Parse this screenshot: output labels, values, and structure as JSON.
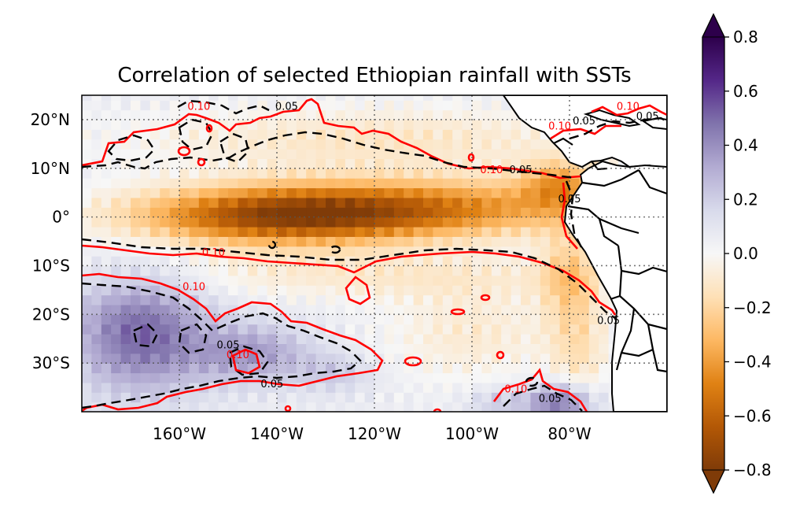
{
  "chart_data": {
    "type": "heatmap",
    "title": "Correlation of selected Ethiopian rainfall with SSTs",
    "colormap": "PuOr",
    "colorbar": {
      "range": [
        -0.8,
        0.8
      ],
      "extend": "both",
      "ticks": [
        "0.8",
        "0.6",
        "0.4",
        "0.2",
        "0.0",
        "−0.2",
        "−0.4",
        "−0.6",
        "−0.8"
      ],
      "tick_values": [
        0.8,
        0.6,
        0.4,
        0.2,
        0.0,
        -0.2,
        -0.4,
        -0.6,
        -0.8
      ]
    },
    "x_ticks": {
      "labels": [
        "160°W",
        "140°W",
        "120°W",
        "100°W",
        "80°W"
      ],
      "lon": [
        -160,
        -140,
        -120,
        -100,
        -80
      ]
    },
    "y_ticks": {
      "labels": [
        "20°N",
        "10°N",
        "0°",
        "10°S",
        "20°S",
        "30°S"
      ],
      "lat": [
        20,
        10,
        0,
        -10,
        -20,
        -30
      ]
    },
    "lon_range": [
      -180,
      -60
    ],
    "lat_range": [
      -40,
      25
    ],
    "gridlines": true,
    "contours": [
      {
        "level": "0.10",
        "meaning": "red solid significance contour",
        "color": "#ff0000"
      },
      {
        "level": "0.05",
        "meaning": "black dashed significance contour",
        "color": "#000000"
      }
    ],
    "contour_labels": [
      {
        "text": "0.10",
        "lon": -156,
        "lat": 22,
        "color": "#ff0000"
      },
      {
        "text": "0.05",
        "lon": -138,
        "lat": 22,
        "color": "#000000"
      },
      {
        "text": "0.10",
        "lon": -82,
        "lat": 18,
        "color": "#ff0000"
      },
      {
        "text": "0.05",
        "lon": -77,
        "lat": 19,
        "color": "#000000"
      },
      {
        "text": "0.10",
        "lon": -68,
        "lat": 22,
        "color": "#ff0000"
      },
      {
        "text": "0.05",
        "lon": -64,
        "lat": 20,
        "color": "#000000"
      },
      {
        "text": "0.10",
        "lon": -96,
        "lat": 9,
        "color": "#ff0000"
      },
      {
        "text": "0.05",
        "lon": -90,
        "lat": 9,
        "color": "#000000"
      },
      {
        "text": "0.05",
        "lon": -80,
        "lat": 3,
        "color": "#000000"
      },
      {
        "text": "0.10",
        "lon": -153,
        "lat": -8,
        "color": "#ff0000"
      },
      {
        "text": "0.10",
        "lon": -157,
        "lat": -15,
        "color": "#ff0000"
      },
      {
        "text": "0.05",
        "lon": -150,
        "lat": -27,
        "color": "#000000"
      },
      {
        "text": "0.10",
        "lon": -148,
        "lat": -29,
        "color": "#ff0000"
      },
      {
        "text": "0.05",
        "lon": -141,
        "lat": -35,
        "color": "#000000"
      },
      {
        "text": "0.10",
        "lon": -91,
        "lat": -36,
        "color": "#ff0000"
      },
      {
        "text": "0.05",
        "lon": -84,
        "lat": -38,
        "color": "#000000"
      },
      {
        "text": "0.05",
        "lon": -72,
        "lat": -22,
        "color": "#000000"
      }
    ],
    "fields": [
      {
        "lon": -140,
        "lat": 0,
        "slon": 30,
        "slat": 6,
        "amp": -0.62
      },
      {
        "lon": -110,
        "lat": 2,
        "slon": 40,
        "slat": 6,
        "amp": -0.48
      },
      {
        "lon": -82,
        "lat": 7,
        "slon": 8,
        "slat": 5,
        "amp": -0.35
      },
      {
        "lon": -120,
        "lat": 16,
        "slon": 50,
        "slat": 7,
        "amp": -0.18
      },
      {
        "lon": -120,
        "lat": -12,
        "slon": 50,
        "slat": 5,
        "amp": -0.15
      },
      {
        "lon": -100,
        "lat": -24,
        "slon": 18,
        "slat": 10,
        "amp": -0.15
      },
      {
        "lon": -80,
        "lat": -12,
        "slon": 6,
        "slat": 10,
        "amp": -0.25
      },
      {
        "lon": -78,
        "lat": -28,
        "slon": 6,
        "slat": 12,
        "amp": -0.18
      },
      {
        "lon": -168,
        "lat": -24,
        "slon": 14,
        "slat": 12,
        "amp": 0.45
      },
      {
        "lon": -145,
        "lat": -28,
        "slon": 12,
        "slat": 6,
        "amp": 0.3
      },
      {
        "lon": -128,
        "lat": -32,
        "slon": 8,
        "slat": 4,
        "amp": 0.15
      },
      {
        "lon": -68,
        "lat": 21,
        "slon": 9,
        "slat": 5,
        "amp": 0.5
      },
      {
        "lon": -82,
        "lat": -38,
        "slon": 7,
        "slat": 4,
        "amp": 0.45
      },
      {
        "lon": -95,
        "lat": -38,
        "slon": 6,
        "slat": 3,
        "amp": 0.15
      }
    ]
  }
}
